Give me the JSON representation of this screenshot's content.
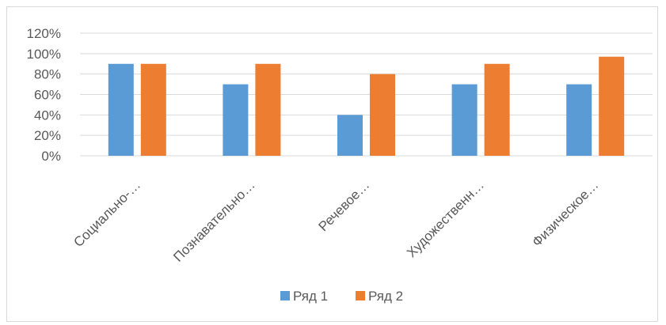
{
  "chart_data": {
    "type": "bar",
    "categories": [
      "Социально-…",
      "Познавательно…",
      "Речевое…",
      "Художественн…",
      "Физическое…"
    ],
    "series": [
      {
        "name": "Ряд 1",
        "color": "#5b9bd5",
        "values": [
          0.9,
          0.7,
          0.4,
          0.7,
          0.7
        ]
      },
      {
        "name": "Ряд 2",
        "color": "#ed7d31",
        "values": [
          0.9,
          0.9,
          0.8,
          0.9,
          0.97
        ]
      }
    ],
    "ylim": [
      0,
      1.2
    ],
    "yticks": [
      0,
      0.2,
      0.4,
      0.6,
      0.8,
      1.0,
      1.2
    ],
    "ytick_labels": [
      "0%",
      "20%",
      "40%",
      "60%",
      "80%",
      "100%",
      "120%"
    ],
    "grid": true,
    "legend": "bottom",
    "title": "",
    "xlabel": "",
    "ylabel": ""
  }
}
